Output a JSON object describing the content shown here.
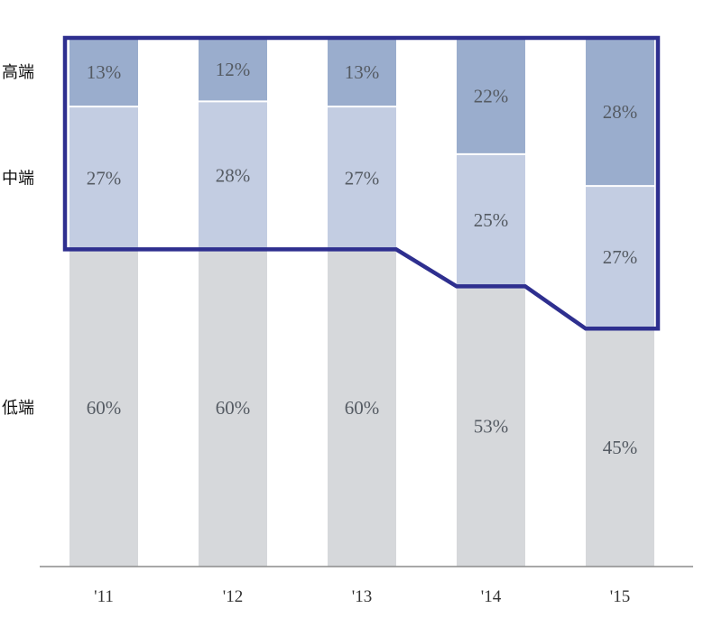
{
  "chart_data": {
    "type": "bar",
    "stacked": true,
    "normalized": true,
    "categories": [
      "'11",
      "'12",
      "'13",
      "'14",
      "'15"
    ],
    "series": [
      {
        "name": "低端",
        "values": [
          60,
          60,
          60,
          53,
          45
        ],
        "labels": [
          "60%",
          "60%",
          "60%",
          "53%",
          "45%"
        ],
        "color": "#d6d8db"
      },
      {
        "name": "中端",
        "values": [
          27,
          28,
          27,
          25,
          27
        ],
        "labels": [
          "27%",
          "28%",
          "27%",
          "25%",
          "27%"
        ],
        "color": "#c3cde2"
      },
      {
        "name": "高端",
        "values": [
          13,
          12,
          13,
          22,
          28
        ],
        "labels": [
          "13%",
          "12%",
          "13%",
          "22%",
          "28%"
        ],
        "color": "#9aadcd"
      }
    ],
    "ylim": [
      0,
      100
    ],
    "grid": false,
    "legend": "left",
    "highlight_outline": {
      "series": [
        "中端",
        "高端"
      ],
      "color": "#2e2f8f"
    }
  }
}
